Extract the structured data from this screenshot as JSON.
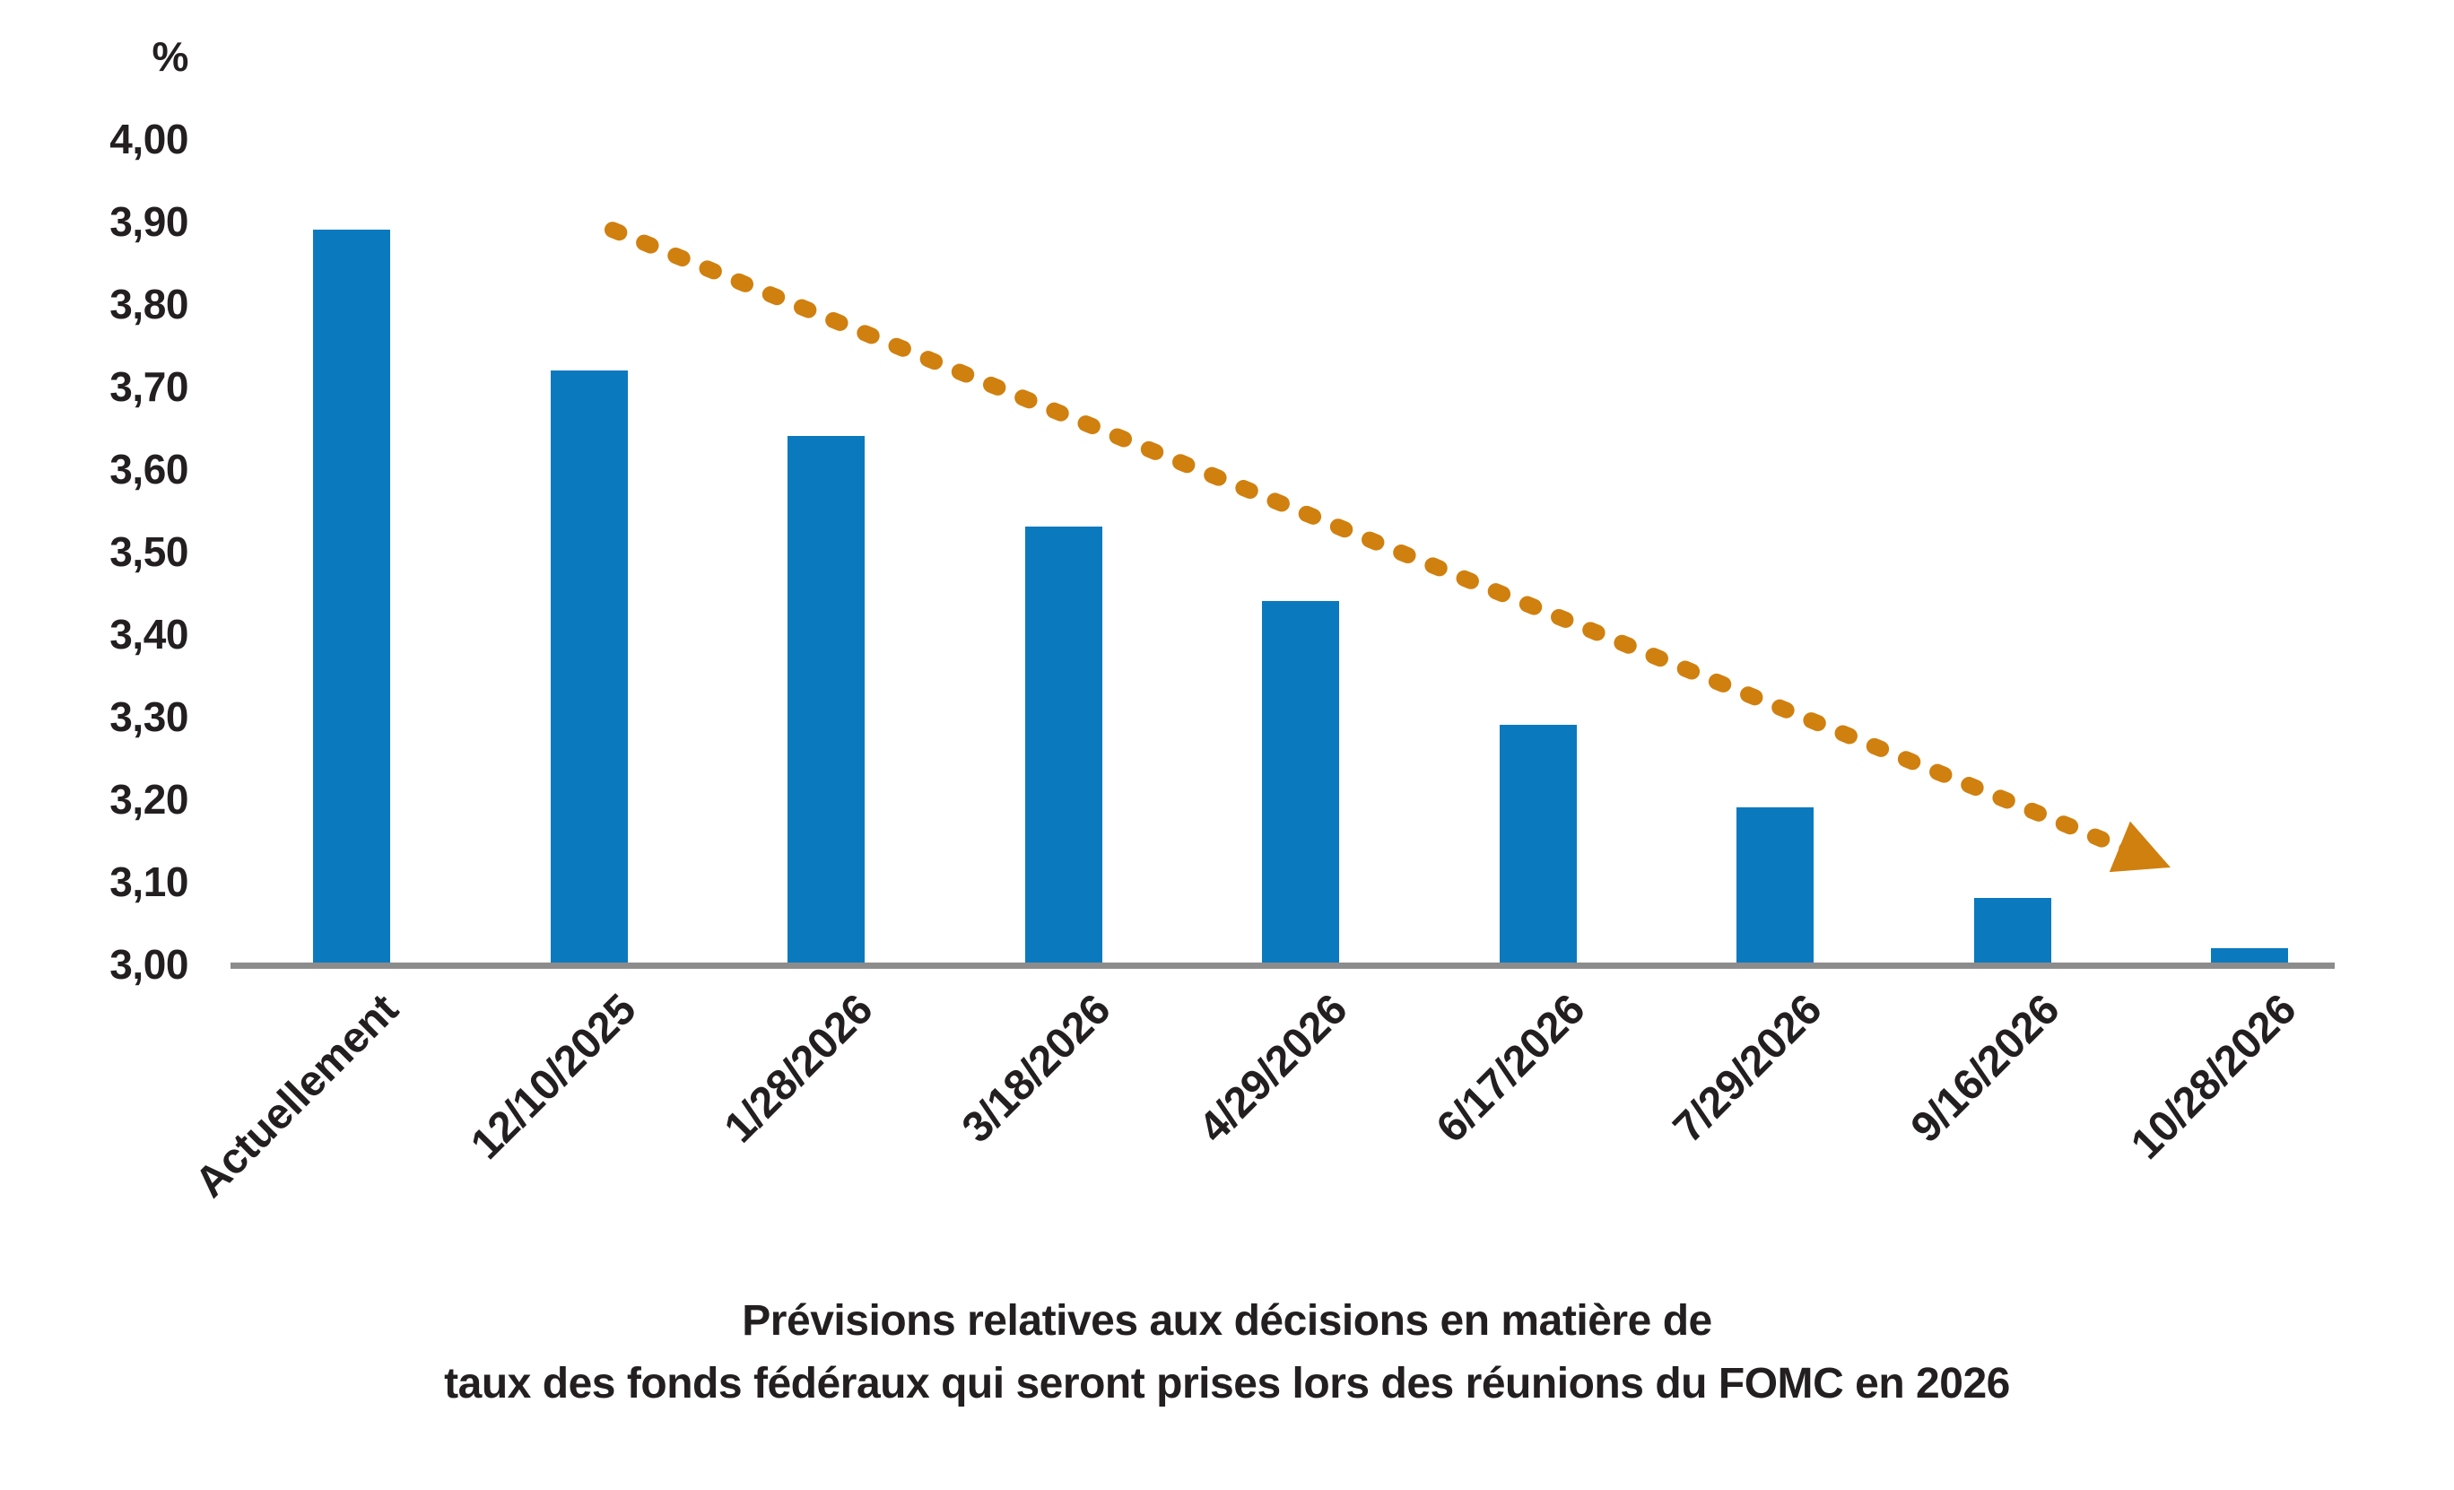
{
  "chart_data": {
    "type": "bar",
    "title": "Prévisions relatives aux décisions en matière de taux des fonds fédéraux qui seront prises lors des réunions du FOMC en 2026",
    "title_line1": "Prévisions relatives aux décisions en matière de",
    "title_line2": "taux des fonds fédéraux qui seront prises lors des réunions du FOMC en 2026",
    "ylabel": "%",
    "categories": [
      "Actuellement",
      "12/10/2025",
      "1/28/2026",
      "3/18/2026",
      "4/29/2026",
      "6/17/2026",
      "7/29/2026",
      "9/16/2026",
      "10/28/2026"
    ],
    "values": [
      3.89,
      3.72,
      3.64,
      3.53,
      3.44,
      3.29,
      3.19,
      3.08,
      3.02
    ],
    "ylim": [
      3.0,
      4.0
    ],
    "ytick_step": 0.1,
    "ytick_labels": [
      "3,00",
      "3,10",
      "3,20",
      "3,30",
      "3,40",
      "3,50",
      "3,60",
      "3,70",
      "3,80",
      "3,90",
      "4,00"
    ],
    "decimal_separator": "comma",
    "grid": "off",
    "legend": "none",
    "bar_color": "#0B79BE",
    "axis_color": "#8C8C8C",
    "text_color": "#231F20",
    "trend_arrow": {
      "style": "dashed",
      "color": "#D0800F",
      "direction": "down-right",
      "start_category_index": 1.1,
      "start_value": 3.89,
      "end_category_index": 7.56,
      "end_value": 3.13
    }
  }
}
